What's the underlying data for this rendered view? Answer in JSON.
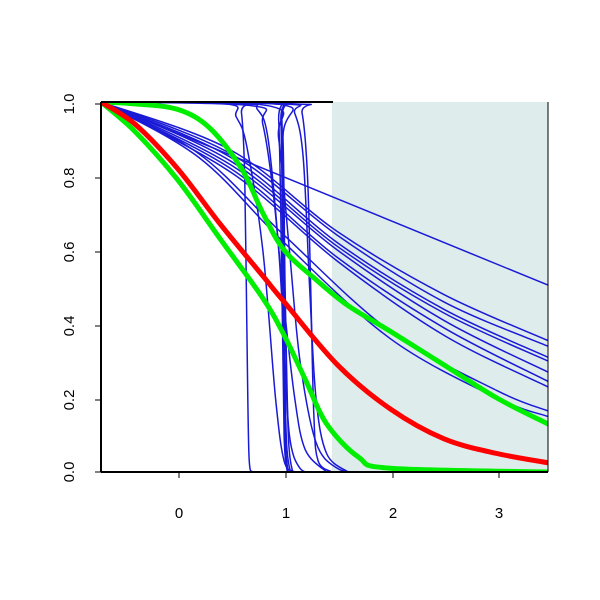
{
  "chart_data": {
    "type": "line",
    "title": "",
    "xlabel": "",
    "ylabel": "",
    "xlim": [
      -0.72,
      3.48
    ],
    "ylim": [
      0,
      1
    ],
    "x_ticks": [
      "0",
      "1",
      "2",
      "3"
    ],
    "y_ticks": [
      "0.0",
      "0.2",
      "0.4",
      "0.6",
      "0.8",
      "1.0"
    ],
    "grid": false,
    "shaded_region": {
      "x_from": 1.45,
      "x_to": 3.48,
      "color": "#dfecec"
    },
    "colors": {
      "thin_curves": "#1a1ad6",
      "red_curve": "#ff0000",
      "green_curves": "#00ee00",
      "axis": "#000000"
    },
    "series": [
      {
        "kind": "thin",
        "points": [
          [
            -0.72,
            1
          ],
          [
            3.48,
            0.505
          ]
        ]
      },
      {
        "kind": "thin",
        "points": [
          [
            -0.72,
            1
          ],
          [
            0.5,
            0.87
          ],
          [
            1.5,
            0.65
          ],
          [
            2.5,
            0.48
          ],
          [
            3.48,
            0.355
          ]
        ]
      },
      {
        "kind": "thin",
        "points": [
          [
            -0.72,
            1
          ],
          [
            0.5,
            0.86
          ],
          [
            1.5,
            0.64
          ],
          [
            2.5,
            0.46
          ],
          [
            3.48,
            0.34
          ]
        ]
      },
      {
        "kind": "thin",
        "points": [
          [
            -0.72,
            1
          ],
          [
            0.5,
            0.85
          ],
          [
            1.5,
            0.62
          ],
          [
            2.5,
            0.44
          ],
          [
            3.48,
            0.31
          ]
        ]
      },
      {
        "kind": "thin",
        "points": [
          [
            -0.72,
            1
          ],
          [
            0.5,
            0.84
          ],
          [
            1.5,
            0.61
          ],
          [
            2.5,
            0.43
          ],
          [
            3.48,
            0.3
          ]
        ]
      },
      {
        "kind": "thin",
        "points": [
          [
            -0.72,
            1
          ],
          [
            0.5,
            0.83
          ],
          [
            1.5,
            0.6
          ],
          [
            2.5,
            0.41
          ],
          [
            3.48,
            0.27
          ]
        ]
      },
      {
        "kind": "thin",
        "points": [
          [
            -0.72,
            1
          ],
          [
            0.5,
            0.82
          ],
          [
            1.5,
            0.58
          ],
          [
            2.5,
            0.39
          ],
          [
            3.48,
            0.245
          ]
        ]
      },
      {
        "kind": "thin",
        "points": [
          [
            -0.72,
            1
          ],
          [
            0.5,
            0.81
          ],
          [
            1.5,
            0.57
          ],
          [
            2.5,
            0.37
          ],
          [
            3.48,
            0.23
          ]
        ]
      },
      {
        "kind": "thin",
        "points": [
          [
            -0.72,
            1
          ],
          [
            0.2,
            0.86
          ],
          [
            1.0,
            0.64
          ],
          [
            2.0,
            0.38
          ],
          [
            3.0,
            0.22
          ],
          [
            3.48,
            0.165
          ]
        ]
      },
      {
        "kind": "thin",
        "points": [
          [
            -0.72,
            1
          ],
          [
            0.2,
            0.85
          ],
          [
            1.0,
            0.62
          ],
          [
            2.0,
            0.36
          ],
          [
            3.0,
            0.2
          ],
          [
            3.48,
            0.15
          ]
        ]
      },
      {
        "kind": "thin",
        "points": [
          [
            -0.72,
            1
          ],
          [
            0.55,
            0.995
          ],
          [
            0.6,
            0.97
          ],
          [
            0.63,
            0.8
          ],
          [
            0.65,
            0.4
          ],
          [
            0.67,
            0.05
          ],
          [
            0.7,
            0
          ]
        ]
      },
      {
        "kind": "thin",
        "points": [
          [
            -0.72,
            1
          ],
          [
            0.45,
            0.995
          ],
          [
            0.55,
            0.96
          ],
          [
            0.65,
            0.88
          ],
          [
            0.8,
            0.6
          ],
          [
            0.92,
            0.2
          ],
          [
            1.0,
            0.03
          ],
          [
            1.1,
            0
          ]
        ]
      },
      {
        "kind": "thin",
        "points": [
          [
            -0.72,
            1
          ],
          [
            0.6,
            0.995
          ],
          [
            0.75,
            0.98
          ],
          [
            0.85,
            0.9
          ],
          [
            0.95,
            0.6
          ],
          [
            1.0,
            0.35
          ],
          [
            1.05,
            0.1
          ],
          [
            1.15,
            0.01
          ],
          [
            1.3,
            0
          ]
        ]
      },
      {
        "kind": "thin",
        "points": [
          [
            -0.72,
            1
          ],
          [
            0.9,
            0.995
          ],
          [
            0.95,
            0.95
          ],
          [
            0.98,
            0.5
          ],
          [
            1.0,
            0.1
          ],
          [
            1.03,
            0
          ]
        ]
      },
      {
        "kind": "thin",
        "points": [
          [
            -0.72,
            1
          ],
          [
            0.92,
            0.995
          ],
          [
            0.97,
            0.95
          ],
          [
            0.99,
            0.5
          ],
          [
            1.01,
            0.1
          ],
          [
            1.04,
            0
          ]
        ]
      },
      {
        "kind": "thin",
        "points": [
          [
            -0.72,
            1
          ],
          [
            0.94,
            0.995
          ],
          [
            0.98,
            0.95
          ],
          [
            1.0,
            0.5
          ],
          [
            1.02,
            0.1
          ],
          [
            1.06,
            0
          ]
        ]
      },
      {
        "kind": "thin",
        "points": [
          [
            -0.72,
            1
          ],
          [
            0.95,
            0.995
          ],
          [
            0.99,
            0.9
          ],
          [
            1.01,
            0.5
          ],
          [
            1.04,
            0.1
          ],
          [
            1.08,
            0
          ]
        ]
      },
      {
        "kind": "thin",
        "points": [
          [
            -0.72,
            1
          ],
          [
            1.1,
            0.995
          ],
          [
            1.17,
            0.97
          ],
          [
            1.22,
            0.8
          ],
          [
            1.25,
            0.5
          ],
          [
            1.28,
            0.15
          ],
          [
            1.32,
            0.03
          ],
          [
            1.45,
            0
          ]
        ]
      },
      {
        "kind": "thin",
        "points": [
          [
            -0.72,
            1
          ],
          [
            1.0,
            0.995
          ],
          [
            1.1,
            0.97
          ],
          [
            1.18,
            0.85
          ],
          [
            1.24,
            0.5
          ],
          [
            1.3,
            0.2
          ],
          [
            1.4,
            0.05
          ],
          [
            1.6,
            0
          ]
        ]
      },
      {
        "kind": "thin",
        "points": [
          [
            -0.72,
            1
          ],
          [
            0.85,
            0.99
          ],
          [
            0.95,
            0.9
          ],
          [
            1.05,
            0.6
          ],
          [
            1.15,
            0.3
          ],
          [
            1.3,
            0.08
          ],
          [
            1.5,
            0.01
          ],
          [
            1.7,
            0
          ]
        ]
      },
      {
        "kind": "thin",
        "points": [
          [
            -0.72,
            1
          ],
          [
            0.7,
            0.99
          ],
          [
            0.8,
            0.94
          ],
          [
            0.9,
            0.75
          ],
          [
            1.0,
            0.45
          ],
          [
            1.1,
            0.2
          ],
          [
            1.2,
            0.06
          ],
          [
            1.4,
            0
          ]
        ]
      },
      {
        "kind": "red",
        "points": [
          [
            -0.72,
            1
          ],
          [
            -0.4,
            0.94
          ],
          [
            0,
            0.82
          ],
          [
            0.4,
            0.67
          ],
          [
            0.8,
            0.53
          ],
          [
            1.0,
            0.46
          ],
          [
            1.5,
            0.29
          ],
          [
            2.0,
            0.17
          ],
          [
            2.5,
            0.09
          ],
          [
            3.0,
            0.05
          ],
          [
            3.48,
            0.025
          ]
        ]
      },
      {
        "kind": "green",
        "points": [
          [
            -0.72,
            1
          ],
          [
            -0.4,
            0.92
          ],
          [
            0,
            0.79
          ],
          [
            0.4,
            0.63
          ],
          [
            0.8,
            0.47
          ],
          [
            1.0,
            0.37
          ],
          [
            1.2,
            0.25
          ],
          [
            1.4,
            0.13
          ],
          [
            1.7,
            0.04
          ],
          [
            2.0,
            0.01
          ],
          [
            3.48,
            0
          ]
        ]
      },
      {
        "kind": "green",
        "points": [
          [
            -0.72,
            1
          ],
          [
            -0.4,
            0.995
          ],
          [
            0,
            0.98
          ],
          [
            0.3,
            0.93
          ],
          [
            0.6,
            0.82
          ],
          [
            0.8,
            0.7
          ],
          [
            1.0,
            0.6
          ],
          [
            1.3,
            0.52
          ],
          [
            1.6,
            0.45
          ],
          [
            2.0,
            0.38
          ],
          [
            2.5,
            0.29
          ],
          [
            3.0,
            0.2
          ],
          [
            3.48,
            0.13
          ]
        ]
      }
    ]
  }
}
